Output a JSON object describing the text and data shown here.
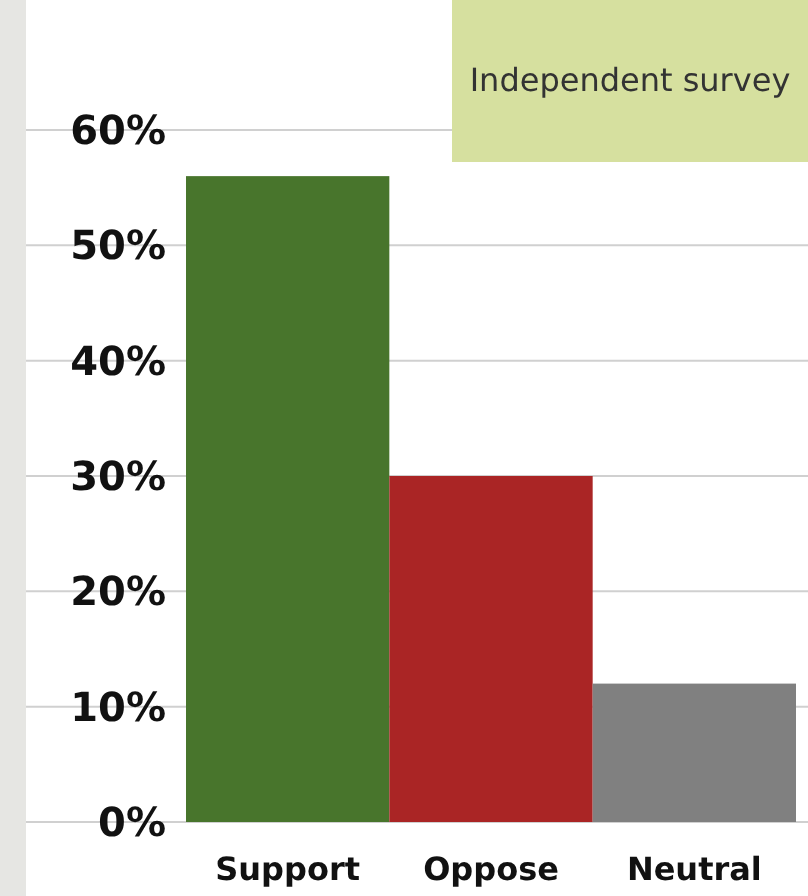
{
  "chart_data": {
    "type": "bar",
    "categories": [
      "Support",
      "Oppose",
      "Neutral"
    ],
    "values": [
      56,
      30,
      12
    ],
    "colors": [
      "#48752c",
      "#aa2525",
      "#808080"
    ],
    "ylim": [
      0,
      60
    ],
    "yticks": [
      {
        "value": 0,
        "label": "0%"
      },
      {
        "value": 10,
        "label": "10%"
      },
      {
        "value": 20,
        "label": "20%"
      },
      {
        "value": 30,
        "label": "30%"
      },
      {
        "value": 40,
        "label": "40%"
      },
      {
        "value": 50,
        "label": "50%"
      },
      {
        "value": 60,
        "label": "60%"
      }
    ],
    "grid": "y",
    "annotations": [
      "Independent survey"
    ]
  }
}
